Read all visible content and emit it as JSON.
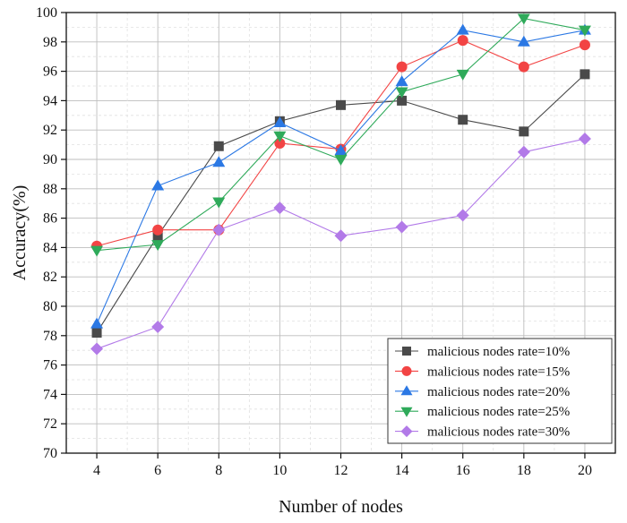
{
  "chart_data": {
    "type": "line",
    "title": "",
    "xlabel": "Number of nodes",
    "ylabel": "Accuracy(%)",
    "x": [
      4,
      6,
      8,
      10,
      12,
      14,
      16,
      18,
      20
    ],
    "x_ticks": [
      "4",
      "6",
      "8",
      "10",
      "12",
      "14",
      "16",
      "18",
      "20"
    ],
    "xlim": [
      3,
      21
    ],
    "ylim": [
      70,
      100
    ],
    "y_ticks": [
      "70",
      "72",
      "74",
      "76",
      "78",
      "80",
      "82",
      "84",
      "86",
      "88",
      "90",
      "92",
      "94",
      "96",
      "98",
      "100"
    ],
    "grid": true,
    "legend_position": "bottom-right",
    "series": [
      {
        "name": "malicious nodes rate=10%",
        "color": "#4a4a4a",
        "marker": "square",
        "values": [
          78.2,
          84.8,
          90.9,
          92.6,
          93.7,
          94.0,
          92.7,
          91.9,
          95.8
        ]
      },
      {
        "name": "malicious nodes rate=15%",
        "color": "#f24444",
        "marker": "circle",
        "values": [
          84.1,
          85.2,
          85.2,
          91.1,
          90.7,
          96.3,
          98.1,
          96.3,
          97.8
        ]
      },
      {
        "name": "malicious nodes rate=20%",
        "color": "#2b78e4",
        "marker": "triangle-up",
        "values": [
          78.8,
          88.2,
          89.8,
          92.5,
          90.6,
          95.3,
          98.8,
          98.0,
          98.8
        ]
      },
      {
        "name": "malicious nodes rate=25%",
        "color": "#2faa5a",
        "marker": "triangle-down",
        "values": [
          83.8,
          84.2,
          87.1,
          91.6,
          90.0,
          94.6,
          95.8,
          99.6,
          98.8
        ]
      },
      {
        "name": "malicious nodes rate=30%",
        "color": "#b27ae8",
        "marker": "diamond",
        "values": [
          77.1,
          78.6,
          85.2,
          86.7,
          84.8,
          85.4,
          86.2,
          90.5,
          91.4
        ]
      }
    ]
  }
}
